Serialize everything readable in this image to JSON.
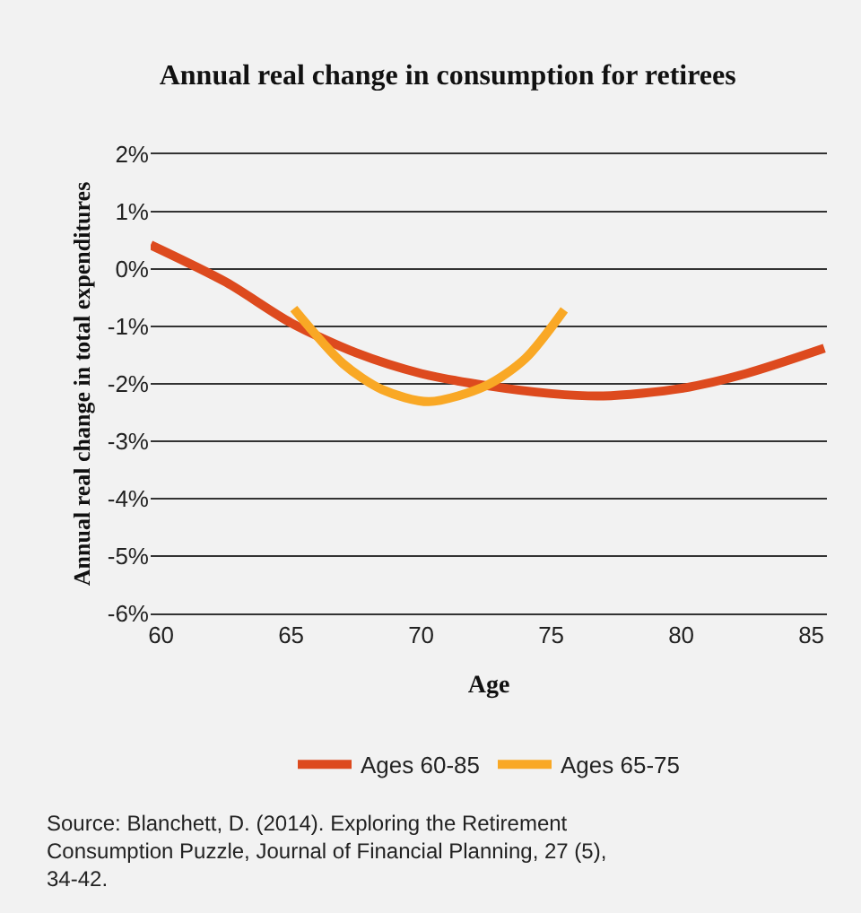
{
  "chart_data": {
    "type": "line",
    "title": "Annual real change in consumption for retirees",
    "xlabel": "Age",
    "ylabel": "Annual real change in total expenditures",
    "series": [
      {
        "name": "Ages 60-85",
        "color": "#dd4a1e",
        "x": [
          59.6,
          62.5,
          65,
          67.5,
          70,
          72.5,
          75,
          77,
          80,
          82.5,
          85.5
        ],
        "values": [
          0.42,
          -0.23,
          -0.94,
          -1.46,
          -1.82,
          -2.03,
          -2.17,
          -2.21,
          -2.08,
          -1.82,
          -1.38
        ]
      },
      {
        "name": "Ages 65-75",
        "color": "#f9a825",
        "x": [
          65.1,
          67,
          68.5,
          70.3,
          72.5,
          74,
          75.5
        ],
        "values": [
          -0.69,
          -1.65,
          -2.1,
          -2.31,
          -2.03,
          -1.56,
          -0.71
        ]
      }
    ],
    "xlim": [
      59.6,
      85.6
    ],
    "xticks": [
      60,
      65,
      70,
      75,
      80,
      85
    ],
    "ylim": [
      -6,
      2
    ],
    "yticks": [
      {
        "value": -6,
        "label": "-6%"
      },
      {
        "value": -5,
        "label": "-5%"
      },
      {
        "value": -4,
        "label": "-4%"
      },
      {
        "value": -3,
        "label": "-3%"
      },
      {
        "value": -2,
        "label": "-2%"
      },
      {
        "value": -1,
        "label": "-1%"
      },
      {
        "value": 0,
        "label": "0%"
      },
      {
        "value": 1,
        "label": "1%"
      },
      {
        "value": 2,
        "label": "2%"
      }
    ],
    "grid": "y",
    "legend": "bottom",
    "marker": "none",
    "line_style": "solid",
    "annotations": [
      "Source: Blanchett, D. (2014). Exploring the Retirement Consumption Puzzle, Journal of Financial Planning, 27 (5), 34-42."
    ]
  }
}
